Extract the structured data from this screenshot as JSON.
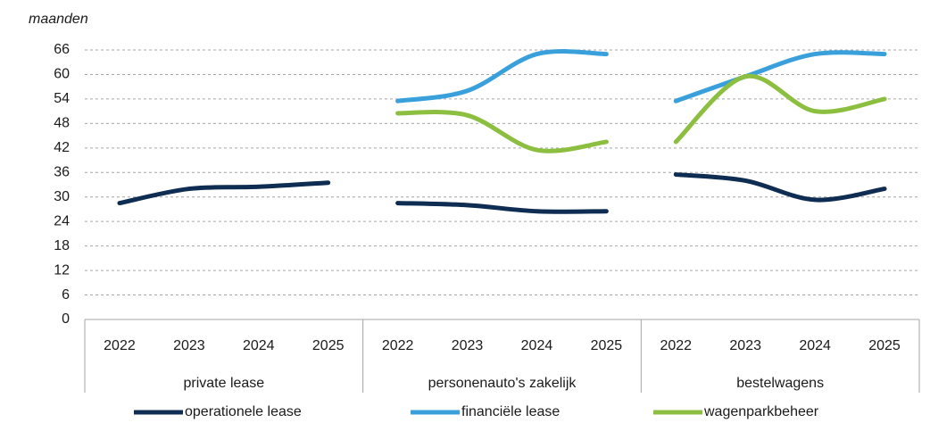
{
  "chart_data": {
    "type": "line",
    "y_axis_label": "maanden",
    "categories": [
      "2022",
      "2023",
      "2024",
      "2025",
      "2022",
      "2023",
      "2024",
      "2025",
      "2022",
      "2023",
      "2024",
      "2025"
    ],
    "groups": [
      "private lease",
      "personenauto's zakelijk",
      "bestelwagens"
    ],
    "series": [
      {
        "name": "operationele lease",
        "color": "#0f2d52",
        "values": [
          28.5,
          32,
          32.5,
          33.5,
          28.5,
          28,
          26.5,
          26.5,
          35.5,
          34,
          29.3,
          32
        ]
      },
      {
        "name": "financiële lease",
        "color": "#3aa0dc",
        "values": [
          null,
          null,
          null,
          null,
          53.5,
          56,
          65,
          65,
          53.5,
          59.5,
          65,
          65
        ]
      },
      {
        "name": "wagenparkbeheer",
        "color": "#8cbe3f",
        "values": [
          null,
          null,
          null,
          null,
          50.5,
          50,
          41.5,
          43.5,
          43.5,
          59.5,
          51,
          54
        ]
      }
    ],
    "ylim": [
      0,
      66
    ],
    "yticks": [
      0,
      6,
      12,
      18,
      24,
      30,
      36,
      42,
      48,
      54,
      60,
      66
    ],
    "grid": true,
    "legend": "bottom"
  }
}
